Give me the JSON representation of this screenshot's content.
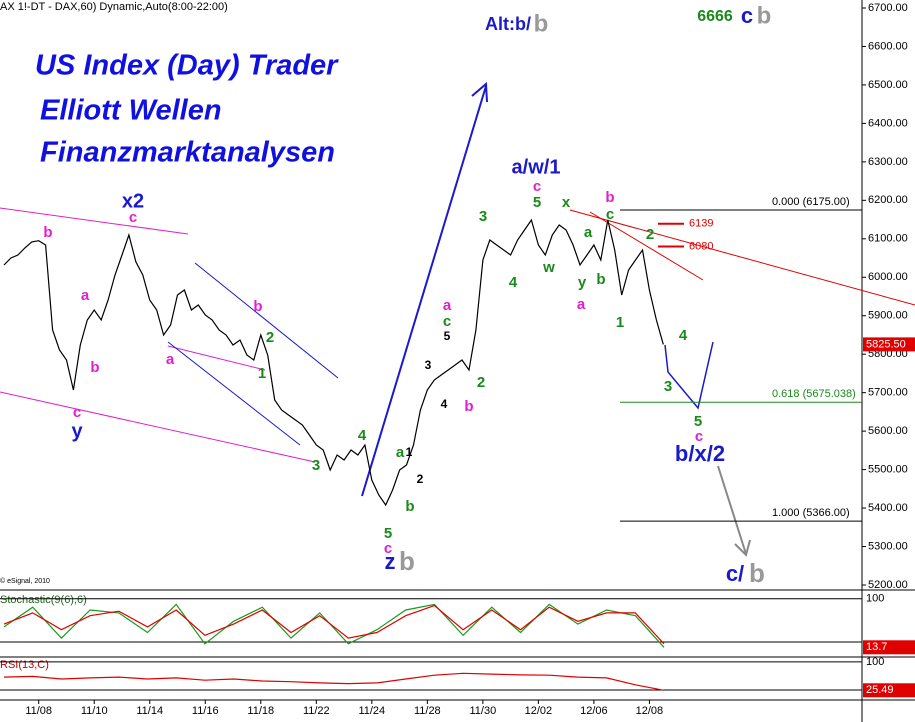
{
  "header": "AX 1!-DT - DAX,60) Dynamic,Auto(8:00-22:00)",
  "copyright": "© eSignal, 2010",
  "titles": [
    "US Index (Day) Trader",
    "Elliott Wellen",
    "Finanzmarktanalysen"
  ],
  "chart_data": [
    {
      "type": "line",
      "color": "#000000",
      "categories": [
        null,
        null,
        null,
        null,
        null,
        "11/08",
        null,
        null,
        null,
        null,
        null,
        null,
        null,
        "11/10",
        null,
        null,
        null,
        null,
        null,
        null,
        null,
        "11/14",
        null,
        null,
        null,
        null,
        null,
        null,
        null,
        "11/16",
        null,
        null,
        null,
        null,
        null,
        null,
        null,
        "11/18",
        null,
        null,
        null,
        null,
        null,
        null,
        null,
        "11/22",
        null,
        null,
        null,
        null,
        null,
        null,
        null,
        "11/24",
        null,
        null,
        null,
        null,
        null,
        null,
        null,
        "11/28",
        null,
        null,
        null,
        null,
        null,
        null,
        null,
        "11/30",
        null,
        null,
        null,
        null,
        null,
        null,
        null,
        "12/02",
        null,
        null,
        null,
        null,
        null,
        null,
        null,
        "12/06",
        null,
        null,
        null,
        null,
        null,
        null,
        null,
        "12/08",
        null,
        null
      ],
      "values": [
        6032,
        6050,
        6058,
        6076,
        6092,
        6095,
        6084,
        5863,
        5811,
        5785,
        5707,
        5824,
        5889,
        5915,
        5889,
        5941,
        6006,
        6058,
        6110,
        6040,
        6006,
        5941,
        5915,
        5850,
        5876,
        5954,
        5967,
        5915,
        5928,
        5902,
        5889,
        5863,
        5850,
        5824,
        5837,
        5798,
        5785,
        5850,
        5798,
        5681,
        5655,
        5642,
        5629,
        5616,
        5590,
        5564,
        5551,
        5499,
        5538,
        5525,
        5551,
        5538,
        5564,
        5473,
        5434,
        5408,
        5447,
        5499,
        5512,
        5564,
        5655,
        5707,
        5733,
        5746,
        5759,
        5772,
        5785,
        5759,
        5863,
        6045,
        6097,
        6084,
        6071,
        6058,
        6097,
        6123,
        6149,
        6084,
        6058,
        6110,
        6136,
        6123,
        6084,
        6032,
        6058,
        6084,
        6045,
        6149,
        6071,
        5954,
        6019,
        6045,
        6071,
        5967,
        5889,
        5825.5
      ],
      "value_labels": [
        null,
        null,
        null,
        null,
        null,
        null,
        null,
        null,
        null,
        null,
        null,
        null,
        null,
        null,
        null,
        null,
        null,
        null,
        null,
        null,
        null,
        null,
        null,
        null,
        null,
        null,
        null,
        null,
        null,
        null,
        null,
        null,
        null,
        null,
        null,
        null,
        null,
        null,
        null,
        null,
        null,
        null,
        null,
        null,
        null,
        null,
        null,
        null,
        null,
        null,
        null,
        null,
        null,
        null,
        null,
        null,
        null,
        null,
        null,
        null,
        null,
        null,
        null,
        null,
        null,
        null,
        null,
        null,
        null,
        null,
        null,
        null,
        null,
        null,
        null,
        null,
        null,
        null,
        null,
        null,
        null,
        null,
        null,
        null,
        null,
        null,
        null,
        null,
        null,
        null,
        null,
        null,
        null,
        null,
        null,
        "5825.50"
      ],
      "ylim": [
        5200,
        6700
      ],
      "yticks": [
        {
          "value": 6700,
          "label": "6700.00"
        },
        {
          "value": 6600,
          "label": "6600.00"
        },
        {
          "value": 6500,
          "label": "6500.00"
        },
        {
          "value": 6400,
          "label": "6400.00"
        },
        {
          "value": 6300,
          "label": "6300.00"
        },
        {
          "value": 6200,
          "label": "6200.00"
        },
        {
          "value": 6100,
          "label": "6100.00"
        },
        {
          "value": 6000,
          "label": "6000.00"
        },
        {
          "value": 5900,
          "label": "5900.00"
        },
        {
          "value": 5800,
          "label": "5800.00"
        },
        {
          "value": 5700,
          "label": "5700.00"
        },
        {
          "value": 5600,
          "label": "5600.00"
        },
        {
          "value": 5500,
          "label": "5500.00"
        },
        {
          "value": 5400,
          "label": "5400.00"
        },
        {
          "value": 5300,
          "label": "5300.00"
        },
        {
          "value": 5200,
          "label": "5200.00"
        }
      ],
      "levels": [
        {
          "value": 6175,
          "label": "0.000 (6175.00)",
          "color": "#000000"
        },
        {
          "value": 5675.038,
          "label": "0.618 (5675.038)",
          "color": "#1a8a1a"
        },
        {
          "value": 5366,
          "label": "1.000 (5366.00)",
          "color": "#000000"
        }
      ],
      "marks": [
        {
          "value": 6139,
          "color": "#e00000"
        },
        {
          "value": 6080,
          "color": "#e00000"
        }
      ],
      "annotations": [
        {
          "text": "x2",
          "color": "#1a1acc"
        },
        {
          "text": "c",
          "color": "#e020d0"
        },
        {
          "text": "b",
          "color": "#e020d0"
        },
        {
          "text": "a",
          "color": "#e020d0"
        },
        {
          "text": "b",
          "color": "#e020d0"
        },
        {
          "text": "c",
          "color": "#e020d0"
        },
        {
          "text": "y",
          "color": "#1a1acc"
        },
        {
          "text": "a",
          "color": "#e020d0"
        },
        {
          "text": "b",
          "color": "#e020d0"
        },
        {
          "text": "2",
          "color": "#1a8a1a"
        },
        {
          "text": "1",
          "color": "#1a8a1a"
        },
        {
          "text": "3",
          "color": "#1a8a1a"
        },
        {
          "text": "4",
          "color": "#1a8a1a"
        },
        {
          "text": "a",
          "color": "#1a8a1a"
        },
        {
          "text": "1",
          "color": "#000000"
        },
        {
          "text": "2",
          "color": "#000000"
        },
        {
          "text": "b",
          "color": "#1a8a1a"
        },
        {
          "text": "5",
          "color": "#1a8a1a"
        },
        {
          "text": "c",
          "color": "#e020d0"
        },
        {
          "text": "z",
          "color": "#1a1acc"
        },
        {
          "text": "b",
          "color": "#999999"
        },
        {
          "text": "3",
          "color": "#000000"
        },
        {
          "text": "4",
          "color": "#000000"
        },
        {
          "text": "5",
          "color": "#000000"
        },
        {
          "text": "c",
          "color": "#1a8a1a"
        },
        {
          "text": "a",
          "color": "#e020d0"
        },
        {
          "text": "b",
          "color": "#e020d0"
        },
        {
          "text": "2",
          "color": "#1a8a1a"
        },
        {
          "text": "3",
          "color": "#1a8a1a"
        },
        {
          "text": "4",
          "color": "#1a8a1a"
        },
        {
          "text": "a/w/1",
          "color": "#1a1acc"
        },
        {
          "text": "c",
          "color": "#e020d0"
        },
        {
          "text": "5",
          "color": "#1a8a1a"
        },
        {
          "text": "w",
          "color": "#1a8a1a"
        },
        {
          "text": "x",
          "color": "#1a8a1a"
        },
        {
          "text": "a",
          "color": "#1a8a1a"
        },
        {
          "text": "y",
          "color": "#1a8a1a"
        },
        {
          "text": "a",
          "color": "#e020d0"
        },
        {
          "text": "b",
          "color": "#1a8a1a"
        },
        {
          "text": "b",
          "color": "#e020d0"
        },
        {
          "text": "c",
          "color": "#1a8a1a"
        },
        {
          "text": "1",
          "color": "#1a8a1a"
        },
        {
          "text": "2",
          "color": "#1a8a1a"
        },
        {
          "text": "4",
          "color": "#1a8a1a"
        },
        {
          "text": "3",
          "color": "#1a8a1a"
        },
        {
          "text": "5",
          "color": "#1a8a1a"
        },
        {
          "text": "c",
          "color": "#e020d0"
        },
        {
          "text": "b/x/2",
          "color": "#1a1acc"
        },
        {
          "text": "c/",
          "color": "#1a1acc"
        },
        {
          "text": "b",
          "color": "#999999"
        },
        {
          "text": "Alt:b/",
          "color": "#1a1acc"
        },
        {
          "text": "b",
          "color": "#999999"
        },
        {
          "text": "6666",
          "color": "#1a8a1a"
        },
        {
          "text": "c",
          "color": "#1a1acc"
        },
        {
          "text": "b",
          "color": "#999999"
        }
      ]
    },
    {
      "type": "line",
      "title": "Stochastic(9(6),6)",
      "ylim": [
        0,
        105
      ],
      "yticks": [
        100
      ],
      "series": [
        {
          "color": "#1a9a1a",
          "values": [
            50,
            85,
            30,
            80,
            75,
            40,
            90,
            20,
            60,
            85,
            30,
            75,
            20,
            45,
            80,
            90,
            35,
            85,
            40,
            90,
            55,
            80,
            70,
            13.7
          ]
        },
        {
          "color": "#e00000",
          "values": [
            55,
            75,
            45,
            70,
            78,
            50,
            80,
            35,
            55,
            80,
            40,
            70,
            30,
            40,
            70,
            88,
            45,
            80,
            45,
            85,
            60,
            75,
            75,
            20
          ]
        }
      ]
    },
    {
      "type": "line",
      "title": "RSI(13,C)",
      "ylim": [
        0,
        105
      ],
      "yticks": [
        100
      ],
      "series": [
        {
          "color": "#e00000",
          "values": [
            60,
            62,
            55,
            58,
            60,
            55,
            58,
            52,
            55,
            50,
            48,
            45,
            43,
            45,
            55,
            65,
            70,
            68,
            66,
            65,
            60,
            58,
            40,
            25.49
          ]
        }
      ]
    }
  ]
}
